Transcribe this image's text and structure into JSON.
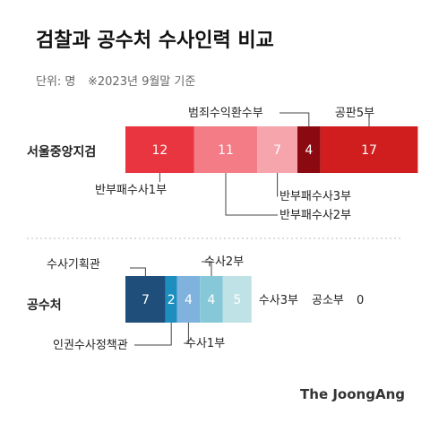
{
  "title": "검찰과 공수처 수사인력 비교",
  "unit_label": "단위: 명",
  "note": "※2023년 9월말 기준",
  "credit": "The JoongAng",
  "colors": {
    "title": "#111111",
    "subtle": "#666666",
    "label": "#222222",
    "leader": "#444444",
    "divider": "#bbbbbb",
    "bar_text_light": "#ffffff",
    "bar_text_dark": "#222222"
  },
  "chart_data": [
    {
      "type": "bar",
      "orientation": "horizontal",
      "stacked": true,
      "category": "서울중앙지검",
      "segments": [
        {
          "name": "반부패수사1부",
          "value": 12,
          "color": "#e8353f"
        },
        {
          "name": "반부패수사2부",
          "value": 11,
          "color": "#f37c86"
        },
        {
          "name": "반부패수사3부",
          "value": 7,
          "color": "#f6a5ac"
        },
        {
          "name": "범죄수익환수부",
          "value": 4,
          "color": "#8b0a12"
        },
        {
          "name": "공판5부",
          "value": 17,
          "color": "#d01e1e"
        }
      ]
    },
    {
      "type": "bar",
      "orientation": "horizontal",
      "stacked": true,
      "category": "공수처",
      "segments": [
        {
          "name": "수사기획관",
          "value": 7,
          "color": "#1f4e7b"
        },
        {
          "name": "인권수사정책관",
          "value": 2,
          "color": "#1c8fbf"
        },
        {
          "name": "수사1부",
          "value": 4,
          "color": "#7fb2dd"
        },
        {
          "name": "수사2부",
          "value": 4,
          "color": "#86c8d8"
        },
        {
          "name": "수사3부",
          "value": 5,
          "color": "#bfe2e6"
        }
      ],
      "annotations": [
        {
          "name": "수사3부",
          "label": "수사3부"
        },
        {
          "name": "공소부",
          "label": "공소부",
          "value": 0,
          "text": "0"
        }
      ]
    }
  ]
}
